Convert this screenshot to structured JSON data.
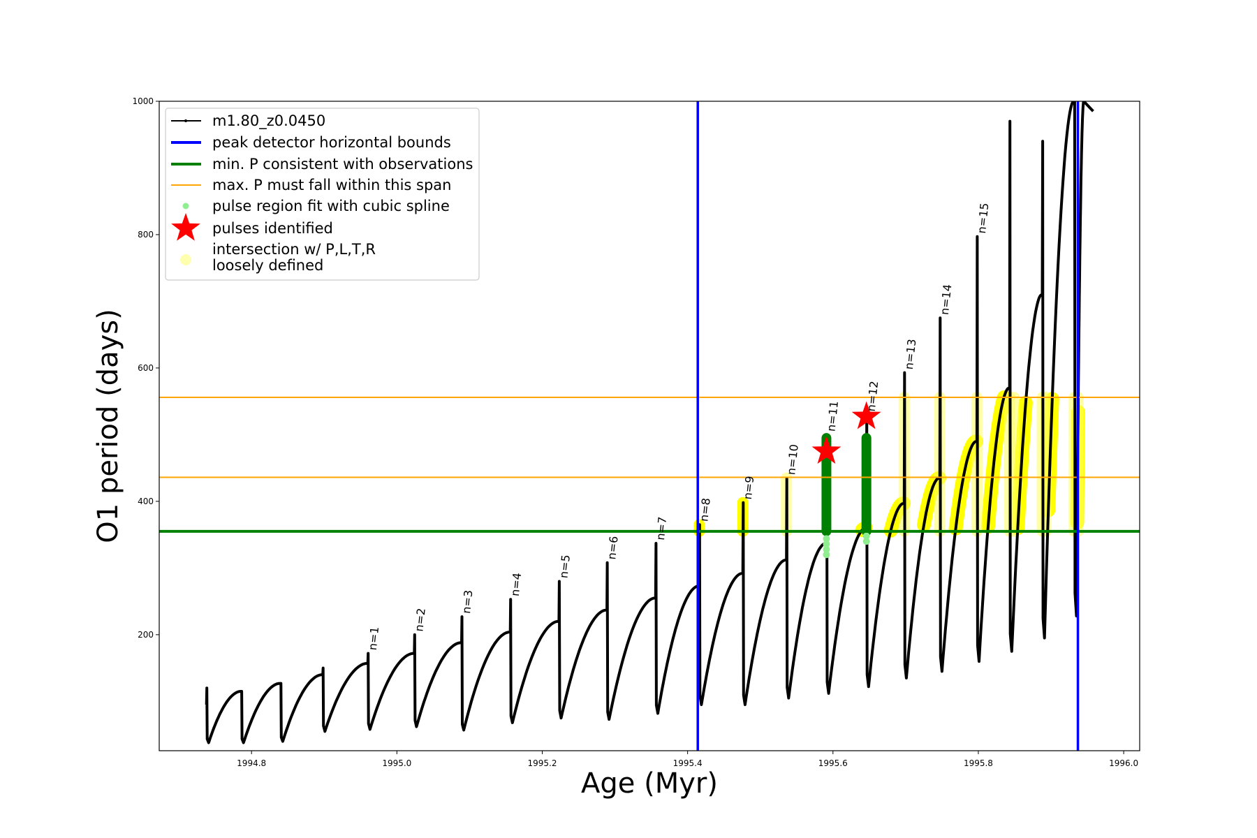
{
  "chart_data": {
    "type": "line",
    "title": "",
    "xlabel": "Age (Myr)",
    "ylabel": "O1 period (days)",
    "xlim": [
      1994.673,
      1996.022
    ],
    "ylim": [
      26,
      1000
    ],
    "xticks": [
      "1994.8",
      "1995.0",
      "1995.2",
      "1995.4",
      "1995.6",
      "1995.8",
      "1996.0"
    ],
    "yticks": [
      "200",
      "400",
      "600",
      "800",
      "1000"
    ],
    "grid": false,
    "legend_position": "upper-left",
    "legend": [
      {
        "label": "m1.80_z0.0450",
        "kind": "line-marker",
        "color": "#000000"
      },
      {
        "label": "peak detector horizontal bounds",
        "kind": "thick-line",
        "color": "#0000ff"
      },
      {
        "label": "min. P consistent with observations",
        "kind": "thick-line",
        "color": "#008000"
      },
      {
        "label": "max. P must fall within this span",
        "kind": "thin-line",
        "color": "#ffa500"
      },
      {
        "label": "pulse region fit with cubic spline",
        "kind": "dot",
        "color": "#90ee90"
      },
      {
        "label": "pulses identified",
        "kind": "star",
        "color": "#ff0000"
      },
      {
        "label": "intersection w/ P,L,T,R",
        "label2": "loosely defined",
        "kind": "dot",
        "color": "#ffffb0"
      }
    ],
    "series": [
      {
        "name": "m1.80_z0.0450",
        "color": "#000000",
        "pulses_columns": [
          "age_Myr",
          "period_before_pulse",
          "pulse_max_period",
          "period_min_after_pulse"
        ],
        "pulses": [
          [
            1994.738,
            95,
            120,
            38
          ],
          [
            1994.786,
            115,
            115,
            38
          ],
          [
            1994.84,
            127,
            127,
            40
          ],
          [
            1994.898,
            140,
            150,
            55
          ],
          [
            1994.96,
            157,
            172,
            58
          ],
          [
            1995.024,
            172,
            200,
            62
          ],
          [
            1995.089,
            188,
            227,
            57
          ],
          [
            1995.156,
            204,
            253,
            68
          ],
          [
            1995.223,
            220,
            280,
            75
          ],
          [
            1995.289,
            237,
            308,
            73
          ],
          [
            1995.356,
            255,
            337,
            82
          ],
          [
            1995.416,
            273,
            365,
            95
          ],
          [
            1995.476,
            292,
            398,
            95
          ],
          [
            1995.536,
            312,
            435,
            105
          ],
          [
            1995.591,
            337,
            500,
            112
          ],
          [
            1995.646,
            360,
            530,
            122
          ],
          [
            1995.698,
            397,
            593,
            135
          ],
          [
            1995.747,
            435,
            675,
            145
          ],
          [
            1995.798,
            490,
            797,
            160
          ],
          [
            1995.843,
            570,
            970,
            175
          ],
          [
            1995.888,
            710,
            940,
            195
          ],
          [
            1995.932,
            1000,
            1000,
            228
          ]
        ],
        "final_rise_age": 1995.945,
        "final_rise_period": 1000,
        "last_point": [
          1995.958,
          985
        ]
      }
    ],
    "pulse_labels": [
      {
        "text": "n=1",
        "age": 1994.96,
        "period": 172
      },
      {
        "text": "n=2",
        "age": 1995.024,
        "period": 200
      },
      {
        "text": "n=3",
        "age": 1995.089,
        "period": 227
      },
      {
        "text": "n=4",
        "age": 1995.156,
        "period": 253
      },
      {
        "text": "n=5",
        "age": 1995.223,
        "period": 280
      },
      {
        "text": "n=6",
        "age": 1995.289,
        "period": 308
      },
      {
        "text": "n=7",
        "age": 1995.356,
        "period": 337
      },
      {
        "text": "n=8",
        "age": 1995.416,
        "period": 365
      },
      {
        "text": "n=9",
        "age": 1995.476,
        "period": 398
      },
      {
        "text": "n=10",
        "age": 1995.536,
        "period": 435
      },
      {
        "text": "n=11",
        "age": 1995.591,
        "period": 500
      },
      {
        "text": "n=12",
        "age": 1995.646,
        "period": 530
      },
      {
        "text": "n=13",
        "age": 1995.698,
        "period": 593
      },
      {
        "text": "n=14",
        "age": 1995.747,
        "period": 675
      },
      {
        "text": "n=15",
        "age": 1995.798,
        "period": 797
      }
    ],
    "vertical_bounds": {
      "color": "#0000ff",
      "ages": [
        1995.414,
        1995.937
      ]
    },
    "min_period_line": {
      "color": "#008000",
      "period": 355
    },
    "max_period_span": {
      "color": "#ffa500",
      "periods": [
        436,
        556
      ]
    },
    "spline_fit_regions": [
      {
        "age": 1995.591,
        "from": 355,
        "to": 495,
        "dots_below": [
          320,
          350
        ]
      },
      {
        "age": 1995.646,
        "from": 355,
        "to": 495,
        "dots_below": [
          340,
          352
        ]
      }
    ],
    "pulses_identified": [
      {
        "age": 1995.591,
        "period": 475
      },
      {
        "age": 1995.646,
        "period": 527
      }
    ],
    "intersection_columns": [
      {
        "age": 1995.416,
        "from": 355,
        "to": 365,
        "strong": true
      },
      {
        "age": 1995.476,
        "from": 355,
        "to": 398,
        "strong": true
      },
      {
        "age": 1995.536,
        "from": 355,
        "to": 435,
        "strong": false
      },
      {
        "age": 1995.698,
        "from": 355,
        "to": 556,
        "strong": false
      },
      {
        "age": 1995.747,
        "from": 355,
        "to": 556,
        "strong": false
      },
      {
        "age": 1995.798,
        "from": 355,
        "to": 556,
        "strong": false
      },
      {
        "age": 1995.843,
        "from": 355,
        "to": 556,
        "strong": false
      },
      {
        "age": 1995.849,
        "from": 355,
        "to": 556,
        "strong": false
      },
      {
        "age": 1995.888,
        "from": 355,
        "to": 556,
        "strong": false
      },
      {
        "age": 1995.893,
        "from": 355,
        "to": 556,
        "strong": false
      },
      {
        "age": 1995.932,
        "from": 355,
        "to": 556,
        "strong": false
      },
      {
        "age": 1995.937,
        "from": 355,
        "to": 556,
        "strong": false
      }
    ]
  }
}
